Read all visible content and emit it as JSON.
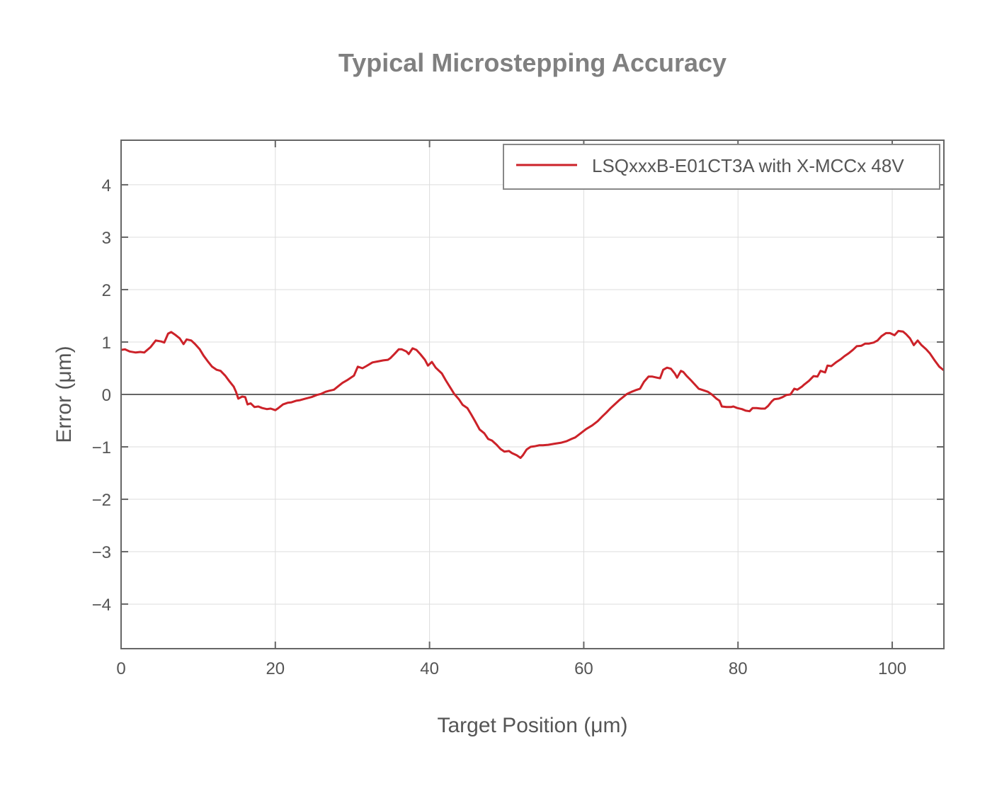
{
  "chart_data": {
    "type": "line",
    "title": "Typical Microstepping Accuracy",
    "xlabel": "Target Position (μm)",
    "ylabel": "Error (μm)",
    "xlim": [
      0,
      106.7
    ],
    "ylim": [
      -4.85,
      4.85
    ],
    "xticks": [
      0,
      20,
      40,
      60,
      80,
      100
    ],
    "yticks": [
      -4,
      -3,
      -2,
      -1,
      0,
      1,
      2,
      3,
      4
    ],
    "ytick_labels": [
      "−4",
      "−3",
      "−2",
      "−1",
      "0",
      "1",
      "2",
      "3",
      "4"
    ],
    "grid": true,
    "zero_line": true,
    "legend_position": "upper right",
    "series": [
      {
        "name": "LSQxxxB-E01CT3A with X-MCCx 48V",
        "color": "#cc2229",
        "x": [
          0.0,
          0.5,
          1.1,
          1.9,
          2.5,
          3.0,
          3.8,
          4.5,
          5.2,
          5.6,
          6.1,
          6.5,
          7.1,
          7.6,
          8.1,
          8.5,
          9.1,
          9.6,
          10.2,
          10.7,
          11.3,
          11.8,
          12.4,
          12.9,
          13.5,
          14.0,
          14.6,
          14.9,
          15.2,
          15.7,
          16.1,
          16.4,
          16.8,
          17.3,
          17.8,
          18.3,
          18.9,
          19.4,
          20.0,
          20.4,
          21.0,
          21.6,
          22.1,
          22.7,
          23.2,
          23.9,
          24.7,
          25.4,
          25.9,
          26.5,
          27.0,
          27.6,
          28.1,
          28.7,
          29.4,
          30.2,
          30.7,
          31.3,
          31.8,
          32.6,
          33.3,
          34.0,
          34.6,
          34.9,
          35.5,
          36.0,
          36.4,
          37.0,
          37.3,
          37.8,
          38.3,
          38.8,
          39.4,
          39.8,
          40.3,
          40.8,
          41.6,
          42.1,
          42.7,
          43.2,
          43.8,
          44.3,
          44.9,
          45.4,
          45.9,
          46.5,
          47.1,
          47.6,
          48.1,
          48.7,
          49.2,
          49.7,
          50.3,
          50.7,
          51.3,
          51.8,
          52.1,
          52.6,
          53.1,
          53.6,
          54.2,
          54.7,
          55.4,
          56.2,
          57.1,
          57.8,
          58.4,
          58.9,
          59.6,
          60.3,
          61.1,
          61.8,
          62.4,
          62.9,
          63.5,
          64.0,
          64.6,
          65.1,
          65.6,
          66.2,
          66.7,
          67.3,
          67.8,
          68.4,
          68.9,
          69.5,
          69.9,
          70.3,
          70.8,
          71.3,
          71.8,
          72.1,
          72.6,
          72.9,
          73.3,
          73.9,
          74.4,
          74.9,
          75.5,
          76.1,
          76.6,
          77.2,
          77.6,
          77.9,
          78.5,
          79.1,
          79.4,
          79.9,
          80.5,
          81.0,
          81.5,
          81.9,
          82.4,
          83.0,
          83.5,
          83.9,
          84.4,
          84.7,
          85.3,
          85.8,
          86.3,
          86.8,
          87.3,
          87.7,
          88.3,
          88.6,
          89.2,
          89.8,
          90.3,
          90.7,
          91.3,
          91.6,
          92.1,
          92.7,
          93.3,
          93.8,
          94.3,
          94.9,
          95.4,
          96.0,
          96.5,
          97.0,
          97.6,
          98.1,
          98.6,
          99.2,
          99.7,
          100.3,
          100.8,
          101.4,
          101.8,
          102.3,
          102.8,
          103.3,
          103.8,
          104.4,
          104.9,
          105.5,
          106.1,
          106.7
        ],
        "y": [
          0.85,
          0.86,
          0.82,
          0.8,
          0.81,
          0.8,
          0.9,
          1.03,
          1.01,
          0.99,
          1.16,
          1.19,
          1.13,
          1.07,
          0.96,
          1.05,
          1.03,
          0.96,
          0.86,
          0.74,
          0.62,
          0.53,
          0.47,
          0.45,
          0.36,
          0.26,
          0.15,
          0.05,
          -0.08,
          -0.04,
          -0.05,
          -0.19,
          -0.17,
          -0.24,
          -0.23,
          -0.26,
          -0.28,
          -0.27,
          -0.3,
          -0.26,
          -0.19,
          -0.16,
          -0.15,
          -0.12,
          -0.11,
          -0.08,
          -0.05,
          -0.01,
          0.01,
          0.05,
          0.07,
          0.09,
          0.15,
          0.22,
          0.28,
          0.36,
          0.53,
          0.5,
          0.54,
          0.61,
          0.63,
          0.65,
          0.66,
          0.69,
          0.78,
          0.86,
          0.86,
          0.82,
          0.77,
          0.88,
          0.85,
          0.77,
          0.66,
          0.55,
          0.62,
          0.51,
          0.4,
          0.27,
          0.13,
          0.01,
          -0.09,
          -0.2,
          -0.26,
          -0.38,
          -0.51,
          -0.67,
          -0.74,
          -0.85,
          -0.88,
          -0.96,
          -1.04,
          -1.09,
          -1.08,
          -1.12,
          -1.16,
          -1.21,
          -1.16,
          -1.05,
          -1.0,
          -0.99,
          -0.97,
          -0.97,
          -0.96,
          -0.94,
          -0.92,
          -0.89,
          -0.85,
          -0.82,
          -0.74,
          -0.66,
          -0.59,
          -0.51,
          -0.42,
          -0.35,
          -0.26,
          -0.19,
          -0.11,
          -0.05,
          0.01,
          0.05,
          0.08,
          0.11,
          0.24,
          0.34,
          0.34,
          0.32,
          0.31,
          0.47,
          0.51,
          0.49,
          0.4,
          0.32,
          0.45,
          0.43,
          0.36,
          0.27,
          0.19,
          0.11,
          0.08,
          0.05,
          0.0,
          -0.08,
          -0.12,
          -0.23,
          -0.24,
          -0.24,
          -0.23,
          -0.26,
          -0.28,
          -0.31,
          -0.32,
          -0.26,
          -0.26,
          -0.27,
          -0.27,
          -0.22,
          -0.13,
          -0.09,
          -0.08,
          -0.05,
          -0.01,
          0.0,
          0.11,
          0.09,
          0.15,
          0.19,
          0.26,
          0.35,
          0.34,
          0.45,
          0.42,
          0.55,
          0.54,
          0.61,
          0.67,
          0.73,
          0.78,
          0.85,
          0.92,
          0.93,
          0.97,
          0.97,
          0.99,
          1.03,
          1.11,
          1.17,
          1.17,
          1.13,
          1.21,
          1.2,
          1.15,
          1.07,
          0.94,
          1.03,
          0.94,
          0.86,
          0.78,
          0.65,
          0.53,
          0.46
        ]
      }
    ]
  },
  "axes": {
    "x_tick_labels": [
      "0",
      "20",
      "40",
      "60",
      "80",
      "100"
    ],
    "y_tick_labels": [
      "−4",
      "−3",
      "−2",
      "−1",
      "0",
      "1",
      "2",
      "3",
      "4"
    ]
  },
  "legend": {
    "label": "LSQxxxB-E01CT3A with X-MCCx 48V"
  },
  "colors": {
    "series": "#cc2229",
    "axis": "#666666",
    "grid": "#dddddd",
    "title": "#808080",
    "text": "#555555",
    "legend_border": "#888888"
  }
}
